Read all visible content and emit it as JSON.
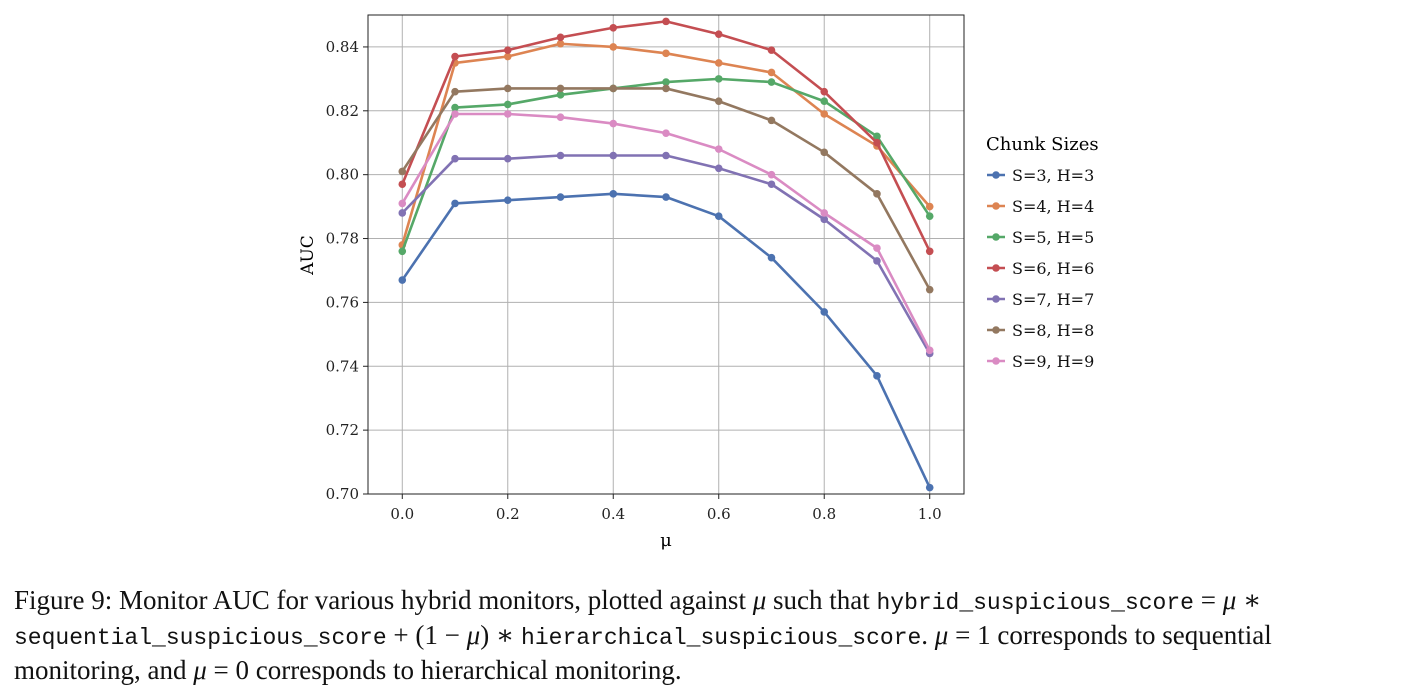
{
  "chart_data": {
    "type": "line",
    "xlabel": "μ",
    "ylabel": "AUC",
    "xlim": [
      -0.065,
      1.065
    ],
    "ylim": [
      0.7,
      0.85
    ],
    "x_ticks": [
      "0.0",
      "0.2",
      "0.4",
      "0.6",
      "0.8",
      "1.0"
    ],
    "y_ticks": [
      "0.70",
      "0.72",
      "0.74",
      "0.76",
      "0.78",
      "0.80",
      "0.82",
      "0.84"
    ],
    "grid": true,
    "legend_title": "Chunk Sizes",
    "legend_position": "outside-right",
    "x": [
      0.0,
      0.1,
      0.2,
      0.3,
      0.4,
      0.5,
      0.6,
      0.7,
      0.8,
      0.9,
      1.0
    ],
    "series": [
      {
        "name": "S=3, H=3",
        "color": "#4c72b0",
        "values": [
          0.767,
          0.791,
          0.792,
          0.793,
          0.794,
          0.793,
          0.787,
          0.774,
          0.757,
          0.737,
          0.702
        ]
      },
      {
        "name": "S=4, H=4",
        "color": "#dd8452",
        "values": [
          0.778,
          0.835,
          0.837,
          0.841,
          0.84,
          0.838,
          0.835,
          0.832,
          0.819,
          0.809,
          0.79
        ]
      },
      {
        "name": "S=5, H=5",
        "color": "#55a868",
        "values": [
          0.776,
          0.821,
          0.822,
          0.825,
          0.827,
          0.829,
          0.83,
          0.829,
          0.823,
          0.812,
          0.787
        ]
      },
      {
        "name": "S=6, H=6",
        "color": "#c44e52",
        "values": [
          0.797,
          0.837,
          0.839,
          0.843,
          0.846,
          0.848,
          0.844,
          0.839,
          0.826,
          0.81,
          0.776
        ]
      },
      {
        "name": "S=7, H=7",
        "color": "#8172b3",
        "values": [
          0.788,
          0.805,
          0.805,
          0.806,
          0.806,
          0.806,
          0.802,
          0.797,
          0.786,
          0.773,
          0.744
        ]
      },
      {
        "name": "S=8, H=8",
        "color": "#937860",
        "values": [
          0.801,
          0.826,
          0.827,
          0.827,
          0.827,
          0.827,
          0.823,
          0.817,
          0.807,
          0.794,
          0.764
        ]
      },
      {
        "name": "S=9, H=9",
        "color": "#da8bc3",
        "values": [
          0.791,
          0.819,
          0.819,
          0.818,
          0.816,
          0.813,
          0.808,
          0.8,
          0.788,
          0.777,
          0.745
        ]
      }
    ]
  },
  "caption": {
    "p1": "Figure 9: Monitor AUC for various hybrid monitors, plotted against ",
    "mu1": "μ",
    "p2": " such that ",
    "code1": "hybrid_suspicious_score",
    "p3": " = ",
    "mu2": "μ",
    "p4": " ∗ ",
    "code2": "sequential_suspicious_score",
    "p5": " + (1 − ",
    "mu3": "μ",
    "p6": ") ∗ ",
    "code3": "hierarchical_suspicious_score",
    "p7": ". ",
    "mu4": "μ",
    "p8": " = 1 corresponds to sequential monitoring, and ",
    "mu5": "μ",
    "p9": " = 0 corresponds to hierarchical monitoring."
  }
}
